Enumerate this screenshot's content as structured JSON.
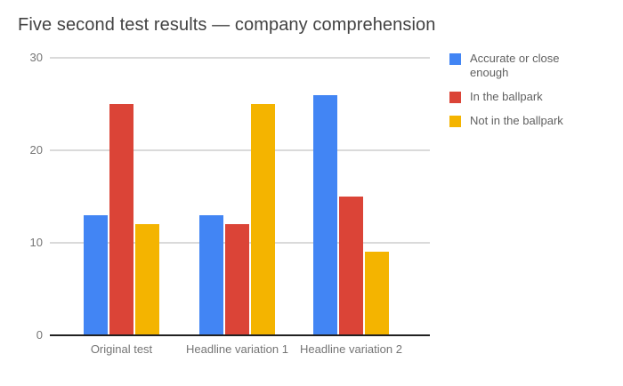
{
  "title": "Five second test results — company comprehension",
  "chart_data": {
    "type": "bar",
    "title": "Five second test results — company comprehension",
    "categories": [
      "Original test",
      "Headline variation 1",
      "Headline variation 2"
    ],
    "series": [
      {
        "name": "Accurate or close enough",
        "color": "#4285F4",
        "values": [
          13,
          13,
          26
        ]
      },
      {
        "name": "In the ballpark",
        "color": "#DB4437",
        "values": [
          25,
          12,
          15
        ]
      },
      {
        "name": "Not in the ballpark",
        "color": "#F4B400",
        "values": [
          12,
          25,
          9
        ]
      }
    ],
    "xlabel": "",
    "ylabel": "",
    "ylim": [
      0,
      30
    ],
    "yticks": [
      0,
      10,
      20,
      30
    ],
    "grid": true,
    "legend_position": "right",
    "axis_text_color": "#757575",
    "gridline_color": "#dadada",
    "axis_line_color": "#212121",
    "title_color": "#424242"
  }
}
